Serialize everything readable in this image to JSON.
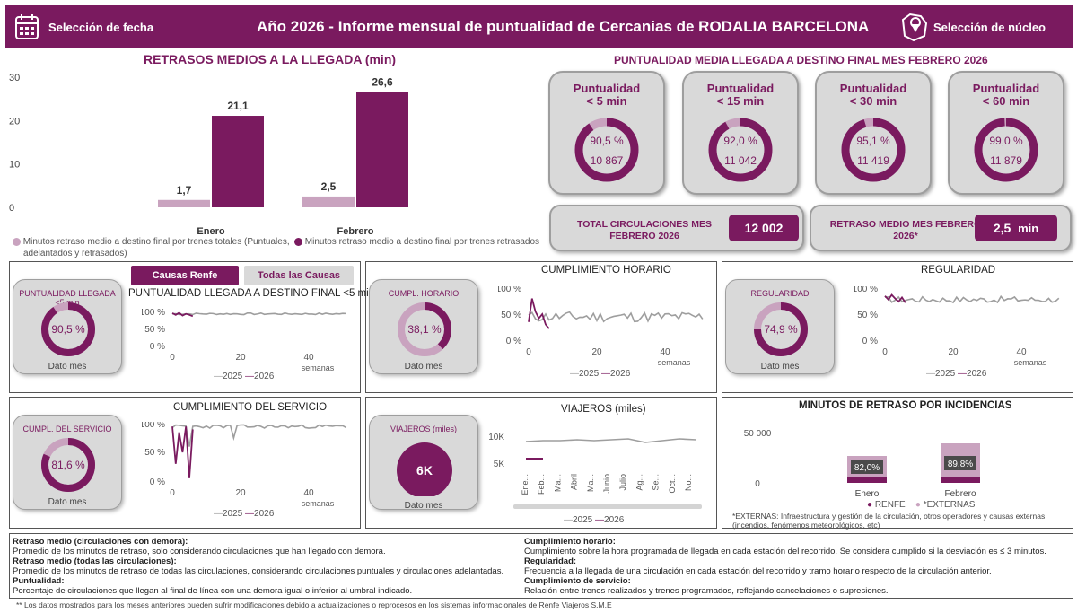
{
  "header": {
    "date_selector": "Selección de fecha",
    "title": "Año 2026 - Informe mensual de puntualidad de Cercanias de RODALIA BARCELONA",
    "nucleus_selector": "Selección de núcleo"
  },
  "colors": {
    "brand": "#7a1a5f",
    "light": "#c9a3bf",
    "card": "#d9d9d9"
  },
  "delays_chart": {
    "chart_data": {
      "type": "bar",
      "title": "RETRASOS MEDIOS A LA LLEGADA (min)",
      "categories": [
        "Enero",
        "Febrero"
      ],
      "ylim": [
        0,
        30
      ],
      "yticks": [
        "0",
        "10",
        "20",
        "30"
      ],
      "series": [
        {
          "name": "Minutos retraso medio a destino final por trenes totales (Puntuales, adelantados y retrasados)",
          "values": [
            1.7,
            2.5
          ],
          "labels": [
            "1,7",
            "2,5"
          ]
        },
        {
          "name": "Minutos retraso medio a destino final por trenes retrasados",
          "values": [
            21.1,
            26.6
          ],
          "labels": [
            "21,1",
            "26,6"
          ]
        }
      ]
    },
    "legend1": "Minutos retraso medio a destino final por trenes totales (Puntuales,",
    "legend1b": "adelantados y retrasados)",
    "legend2": "Minutos retraso medio a destino final por trenes retrasados"
  },
  "punctuality": {
    "title": "PUNTUALIDAD MEDIA LLEGADA A DESTINO FINAL MES FEBRERO 2026",
    "cards": [
      {
        "line1": "Puntualidad",
        "line2": "< 5 min",
        "pct": "90,5 %",
        "value": 0.905,
        "count": "10 867"
      },
      {
        "line1": "Puntualidad",
        "line2": "< 15 min",
        "pct": "92,0 %",
        "value": 0.92,
        "count": "11 042"
      },
      {
        "line1": "Puntualidad",
        "line2": "< 30 min",
        "pct": "95,1 %",
        "value": 0.951,
        "count": "11 419"
      },
      {
        "line1": "Puntualidad",
        "line2": "< 60 min",
        "pct": "99,0 %",
        "value": 0.99,
        "count": "11 879"
      }
    ],
    "total_label": "TOTAL CIRCULACIONES MES FEBRERO 2026",
    "total_value": "12 002",
    "delay_label": "RETRASO MEDIO MES FEBRERO 2026*",
    "delay_value": "2,5",
    "delay_unit": "min"
  },
  "filters": {
    "renfe": "Causas Renfe",
    "all": "Todas las Causas"
  },
  "panels": {
    "punct": {
      "card_label": "PUNTUALIDAD LLEGADA <5 min",
      "pct": "90,5 %",
      "value": 0.905,
      "foot": "Dato mes",
      "title": "PUNTUALIDAD LLEGADA A DESTINO FINAL <5 min",
      "yticks": [
        "100 %",
        "50 %",
        "0 %"
      ],
      "xticks": [
        "0",
        "20",
        "40"
      ],
      "xlabel": "semanas"
    },
    "horario": {
      "title": "CUMPLIMIENTO HORARIO",
      "card_label": "CUMPL. HORARIO",
      "pct": "38,1 %",
      "value": 0.381,
      "foot": "Dato mes",
      "yticks": [
        "100 %",
        "50 %",
        "0 %"
      ],
      "xticks": [
        "0",
        "20",
        "40"
      ],
      "xlabel": "semanas"
    },
    "regularidad": {
      "title": "REGULARIDAD",
      "card_label": "REGULARIDAD",
      "pct": "74,9 %",
      "value": 0.749,
      "foot": "Dato mes",
      "yticks": [
        "100 %",
        "50 %",
        "0 %"
      ],
      "xticks": [
        "0",
        "20",
        "40"
      ],
      "xlabel": "semanas"
    },
    "servicio": {
      "title": "CUMPLIMIENTO DEL SERVICIO",
      "card_label": "CUMPL. DEL SERVICIO",
      "pct": "81,6 %",
      "value": 0.816,
      "foot": "Dato mes",
      "yticks": [
        "100 %",
        "50 %",
        "0 %"
      ],
      "xticks": [
        "0",
        "20",
        "40"
      ],
      "xlabel": "semanas"
    },
    "viajeros": {
      "title": "VIAJEROS (miles)",
      "card_label": "VIAJEROS (miles)",
      "value_text": "6K",
      "foot": "Dato mes",
      "yticks": [
        "10K",
        "5K"
      ],
      "months": [
        "Ene...",
        "Feb...",
        "Ma...",
        "Abril",
        "Ma...",
        "Junio",
        "Julio",
        "Ag...",
        "Se...",
        "Oct...",
        "No..."
      ]
    },
    "incidencias": {
      "title": "MINUTOS DE RETRASO POR INCIDENCIAS",
      "chart_data": {
        "type": "bar",
        "categories": [
          "Enero",
          "Febrero"
        ],
        "yticks": [
          "50 000",
          "0"
        ],
        "series": [
          {
            "name": "RENFE",
            "pct_labels": [
              "82,0%",
              "89,8%"
            ]
          },
          {
            "name": "*EXTERNAS"
          }
        ]
      },
      "note": "*EXTERNAS: Infraestructura y gestión de la circulación, otros operadores y causas externas (incendios, fenómenos meteorológicos, etc)"
    }
  },
  "line_legend": {
    "y2025": "2025",
    "y2026": "2026"
  },
  "glossary": {
    "left": [
      {
        "term": "Retraso medio (circulaciones con demora):",
        "def": "Promedio de los minutos de retraso, solo considerando circulaciones que han llegado con demora."
      },
      {
        "term": "Retraso medio (todas las circulaciones):",
        "def": "Promedio de los minutos de retraso de todas las circulaciones, considerando circulaciones puntuales y circulaciones adelantadas."
      },
      {
        "term": "Puntualidad:",
        "def": "Porcentaje de circulaciones que llegan al final de línea con una demora igual o inferior al umbral indicado."
      }
    ],
    "right": [
      {
        "term": "Cumplimiento horario:",
        "def": "Cumplimiento sobre la hora programada de llegada en cada estación del recorrido. Se considera cumplido si la desviación es ≤ 3 minutos."
      },
      {
        "term": "Regularidad:",
        "def": "Frecuencia a la llegada de una circulación en cada estación del recorrido y tramo horario respecto de la circulación anterior."
      },
      {
        "term": "Cumplimiento de servicio:",
        "def": "Relación entre trenes realizados y trenes programados, reflejando cancelaciones o supresiones."
      }
    ]
  },
  "footnote": "** Los datos mostrados para los meses anteriores pueden sufrir modificaciones debido a actualizaciones o reprocesos en los sistemas informacionales de Renfe Viajeros S.M.E"
}
